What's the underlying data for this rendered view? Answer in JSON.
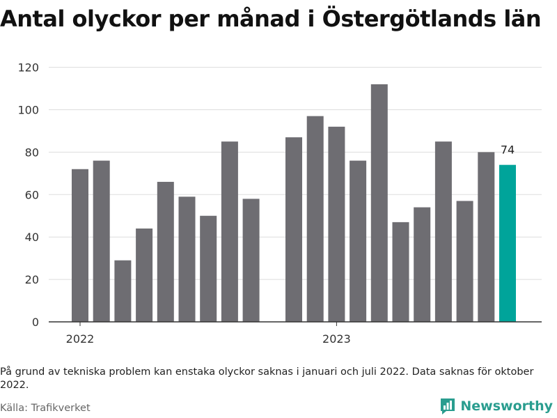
{
  "title": "Antal olyckor per månad i Östergötlands län",
  "note": "På grund av tekniska problem kan enstaka olyckor saknas i januari och juli 2022. Data saknas för oktober 2022.",
  "source": "Källa: Trafikverket",
  "brand": {
    "name": "Newsworthy",
    "icon": "bar-chart-logo-icon",
    "color": "#2a9d8f"
  },
  "colors": {
    "bar": "#6e6d72",
    "highlight": "#00a49a",
    "grid": "#dddddd",
    "axis": "#333333"
  },
  "chart_data": {
    "type": "bar",
    "categories": [
      "2022-01",
      "2022-02",
      "2022-03",
      "2022-04",
      "2022-05",
      "2022-06",
      "2022-07",
      "2022-08",
      "2022-09",
      "2022-10",
      "2022-11",
      "2022-12",
      "2023-01",
      "2023-02",
      "2023-03",
      "2023-04",
      "2023-05",
      "2023-06",
      "2023-07",
      "2023-08",
      "2023-09"
    ],
    "values": [
      72,
      76,
      29,
      44,
      66,
      59,
      50,
      85,
      58,
      null,
      87,
      97,
      92,
      76,
      112,
      47,
      54,
      85,
      57,
      80,
      74
    ],
    "highlight_index": 20,
    "highlight_label": "74",
    "x_tick_labels": [
      {
        "label": "2022",
        "category": "2022-01"
      },
      {
        "label": "2023",
        "category": "2023-01"
      }
    ],
    "y_ticks": [
      0,
      20,
      40,
      60,
      80,
      100,
      120
    ],
    "ylim": [
      0,
      125
    ],
    "grid": true,
    "legend": "none"
  }
}
